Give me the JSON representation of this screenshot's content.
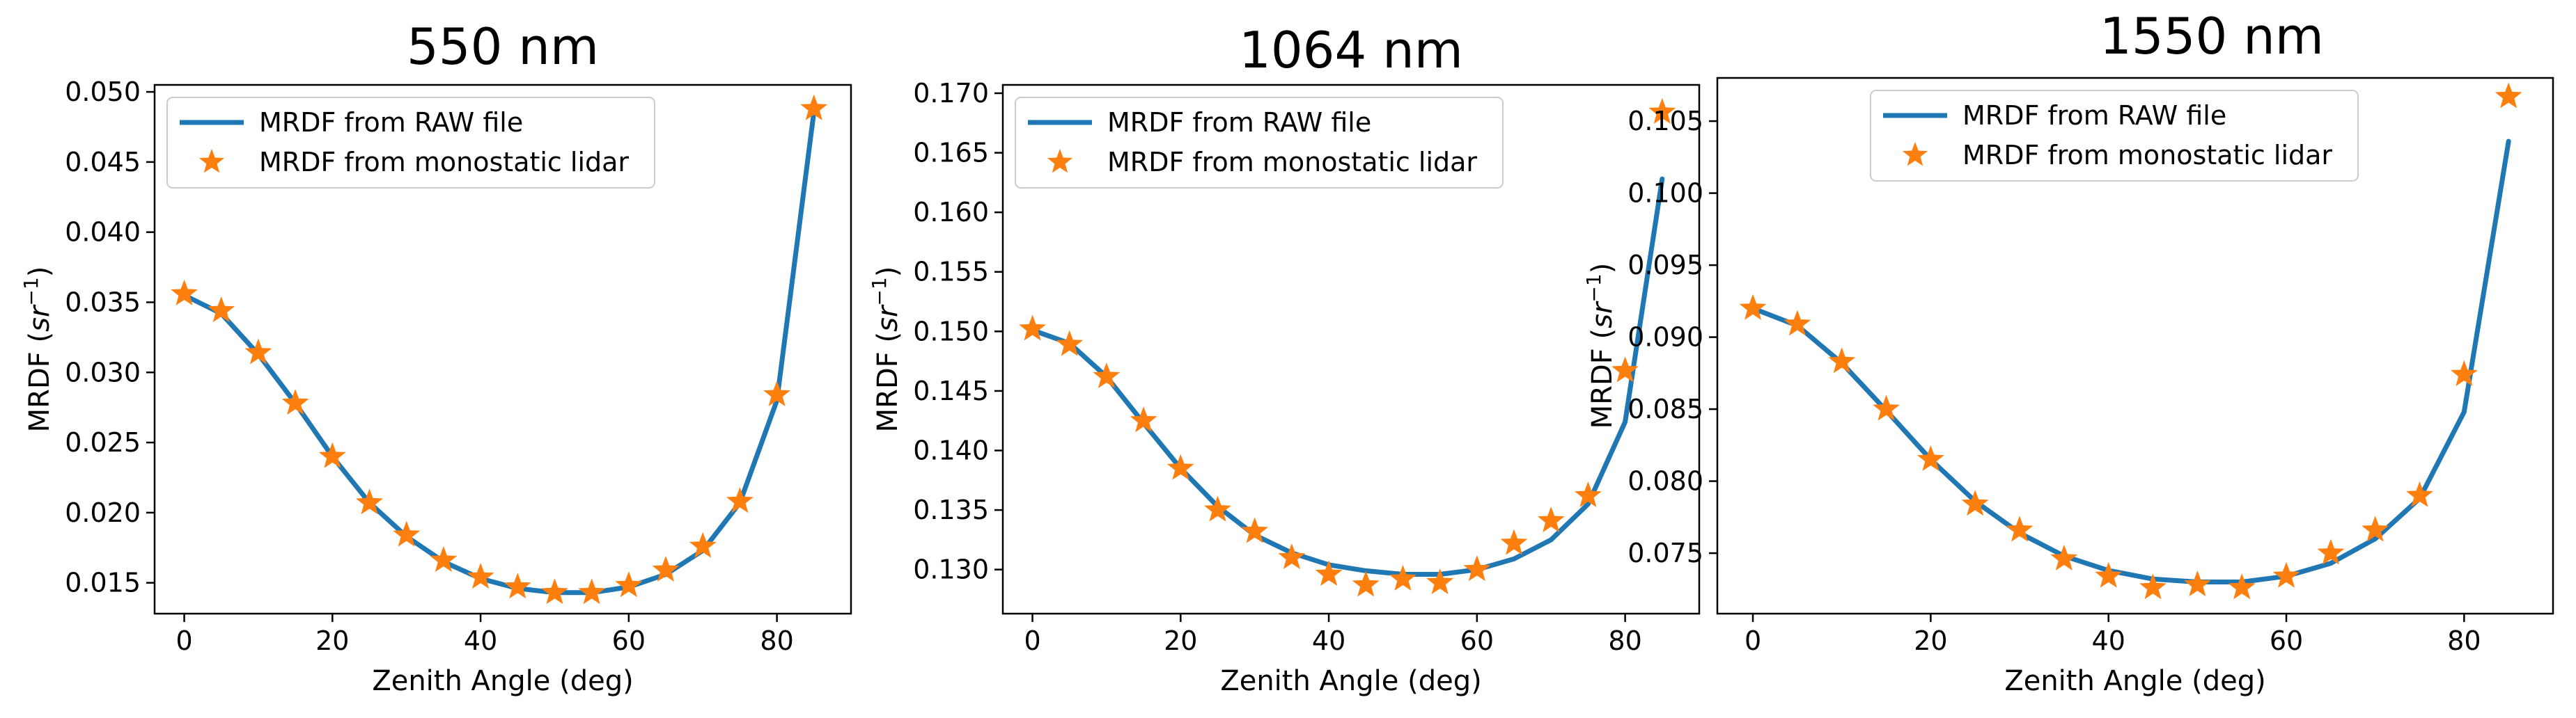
{
  "figure": {
    "colors": {
      "line": "#1f77b4",
      "marker": "#ff7f0e",
      "axis": "#000000",
      "legend_border": "#cccccc"
    }
  },
  "chart_data": [
    {
      "type": "line",
      "title": "550 nm",
      "xlabel": "Zenith Angle (deg)",
      "ylabel_main": "MRDF (",
      "ylabel_unit": "sr",
      "ylabel_exp": "−1",
      "ylabel_close": ")",
      "xlim": [
        -4,
        90
      ],
      "ylim": [
        0.0128,
        0.0505
      ],
      "xticks": [
        0,
        20,
        40,
        60,
        80
      ],
      "xtick_labels": [
        "0",
        "20",
        "40",
        "60",
        "80"
      ],
      "yticks": [
        0.015,
        0.02,
        0.025,
        0.03,
        0.035,
        0.04,
        0.045,
        0.05
      ],
      "ytick_labels": [
        "0.015",
        "0.020",
        "0.025",
        "0.030",
        "0.035",
        "0.040",
        "0.045",
        "0.050"
      ],
      "legend": [
        "MRDF from RAW file",
        "MRDF from monostatic lidar"
      ],
      "series": [
        {
          "name": "MRDF from RAW file",
          "kind": "line",
          "x": [
            0,
            5,
            10,
            15,
            20,
            25,
            30,
            35,
            40,
            45,
            50,
            55,
            60,
            65,
            70,
            75,
            80,
            85
          ],
          "y": [
            0.0355,
            0.0342,
            0.0313,
            0.0278,
            0.024,
            0.0207,
            0.0183,
            0.0165,
            0.0153,
            0.0146,
            0.0143,
            0.0143,
            0.0147,
            0.0156,
            0.0173,
            0.0207,
            0.028,
            0.0486
          ]
        },
        {
          "name": "MRDF from monostatic lidar",
          "kind": "scatter",
          "x": [
            0,
            5,
            10,
            15,
            20,
            25,
            30,
            35,
            40,
            45,
            50,
            55,
            60,
            65,
            70,
            75,
            80,
            85
          ],
          "y": [
            0.0356,
            0.0344,
            0.0314,
            0.0278,
            0.024,
            0.0207,
            0.0184,
            0.0166,
            0.0154,
            0.0147,
            0.0143,
            0.0143,
            0.0148,
            0.0159,
            0.0176,
            0.0208,
            0.0284,
            0.0488
          ]
        }
      ]
    },
    {
      "type": "line",
      "title": "1064 nm",
      "xlabel": "Zenith Angle (deg)",
      "ylabel_main": "MRDF (",
      "ylabel_unit": "sr",
      "ylabel_exp": "−1",
      "ylabel_close": ")",
      "xlim": [
        -4,
        90
      ],
      "ylim": [
        0.1263,
        0.1707
      ],
      "xticks": [
        0,
        20,
        40,
        60,
        80
      ],
      "xtick_labels": [
        "0",
        "20",
        "40",
        "60",
        "80"
      ],
      "yticks": [
        0.13,
        0.135,
        0.14,
        0.145,
        0.15,
        0.155,
        0.16,
        0.165,
        0.17
      ],
      "ytick_labels": [
        "0.130",
        "0.135",
        "0.140",
        "0.145",
        "0.150",
        "0.155",
        "0.160",
        "0.165",
        "0.170"
      ],
      "legend": [
        "MRDF from RAW file",
        "MRDF from monostatic lidar"
      ],
      "series": [
        {
          "name": "MRDF from RAW file",
          "kind": "line",
          "x": [
            0,
            5,
            10,
            15,
            20,
            25,
            30,
            35,
            40,
            45,
            50,
            55,
            60,
            65,
            70,
            75,
            80,
            85
          ],
          "y": [
            0.1501,
            0.149,
            0.1462,
            0.1423,
            0.1385,
            0.1353,
            0.1329,
            0.1314,
            0.1304,
            0.1299,
            0.1296,
            0.1296,
            0.13,
            0.1309,
            0.1325,
            0.1355,
            0.1424,
            0.1628
          ]
        },
        {
          "name": "MRDF from monostatic lidar",
          "kind": "scatter",
          "x": [
            0,
            5,
            10,
            15,
            20,
            25,
            30,
            35,
            40,
            45,
            50,
            55,
            60,
            65,
            70,
            75,
            80,
            85
          ],
          "y": [
            0.1502,
            0.1489,
            0.1462,
            0.1425,
            0.1385,
            0.135,
            0.1332,
            0.131,
            0.1296,
            0.1287,
            0.1292,
            0.1289,
            0.13,
            0.1322,
            0.1341,
            0.1362,
            0.1467,
            0.1684
          ]
        }
      ]
    },
    {
      "type": "line",
      "title": "1550 nm",
      "xlabel": "Zenith Angle (deg)",
      "ylabel_main": "MRDF (",
      "ylabel_unit": "sr",
      "ylabel_exp": "−1",
      "ylabel_close": ")",
      "xlim": [
        -4,
        90
      ],
      "ylim": [
        0.0708,
        0.108
      ],
      "xticks": [
        0,
        20,
        40,
        60,
        80
      ],
      "xtick_labels": [
        "0",
        "20",
        "40",
        "60",
        "80"
      ],
      "yticks": [
        0.075,
        0.08,
        0.085,
        0.09,
        0.095,
        0.1,
        0.105
      ],
      "ytick_labels": [
        "0.075",
        "0.080",
        "0.085",
        "0.090",
        "0.095",
        "0.100",
        "0.105"
      ],
      "legend": [
        "MRDF from RAW file",
        "MRDF from monostatic lidar"
      ],
      "series": [
        {
          "name": "MRDF from RAW file",
          "kind": "line",
          "x": [
            0,
            5,
            10,
            15,
            20,
            25,
            30,
            35,
            40,
            45,
            50,
            55,
            60,
            65,
            70,
            75,
            80,
            85
          ],
          "y": [
            0.092,
            0.0908,
            0.0882,
            0.0849,
            0.0815,
            0.0786,
            0.0764,
            0.0748,
            0.0738,
            0.0732,
            0.073,
            0.073,
            0.0734,
            0.0743,
            0.076,
            0.0788,
            0.0848,
            0.1036
          ]
        },
        {
          "name": "MRDF from monostatic lidar",
          "kind": "scatter",
          "x": [
            0,
            5,
            10,
            15,
            20,
            25,
            30,
            35,
            40,
            45,
            50,
            55,
            60,
            65,
            70,
            75,
            80,
            85
          ],
          "y": [
            0.092,
            0.0909,
            0.0883,
            0.085,
            0.0815,
            0.0784,
            0.0766,
            0.0746,
            0.0734,
            0.0726,
            0.0728,
            0.0726,
            0.0734,
            0.075,
            0.0766,
            0.079,
            0.0874,
            0.1067
          ]
        }
      ]
    }
  ]
}
